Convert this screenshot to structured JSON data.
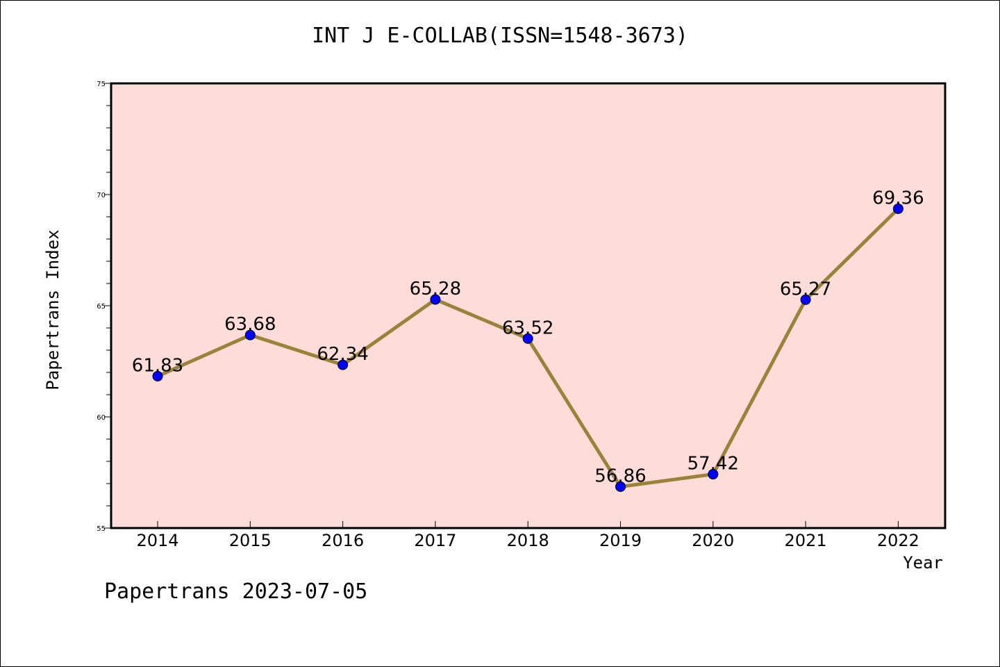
{
  "chart_data": {
    "type": "line",
    "title": "INT J E-COLLAB(ISSN=1548-3673)",
    "xlabel": "Year",
    "ylabel": "Papertrans Index",
    "categories": [
      "2014",
      "2015",
      "2016",
      "2017",
      "2018",
      "2019",
      "2020",
      "2021",
      "2022"
    ],
    "series": [
      {
        "values": [
          61.83,
          63.68,
          62.34,
          65.28,
          63.52,
          56.86,
          57.42,
          65.27,
          69.36
        ],
        "data_labels": [
          "61.83",
          "63.68",
          "62.34",
          "65.28",
          "63.52",
          "56.86",
          "57.42",
          "65.27",
          "69.36"
        ]
      }
    ],
    "ylim": [
      55,
      75
    ],
    "y_ticks": [
      "55",
      "60",
      "65",
      "70",
      "75"
    ],
    "grid": false,
    "colors": {
      "plot_background": "#fddcd9",
      "line": "#9a8238",
      "marker": "#0000ff"
    }
  },
  "footer": {
    "text": "Papertrans 2023-07-05"
  }
}
